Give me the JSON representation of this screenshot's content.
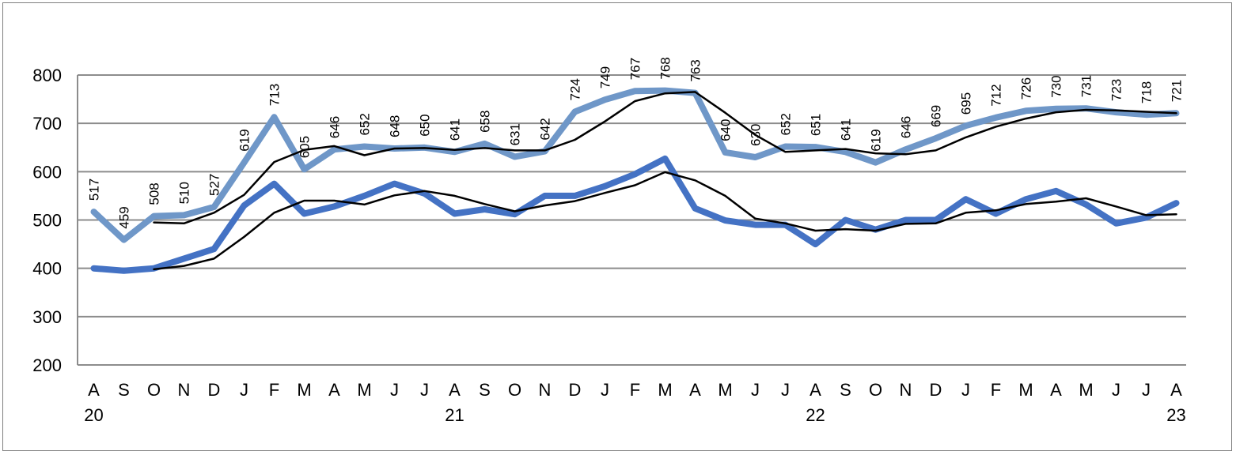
{
  "chart_data": {
    "type": "line",
    "title": "",
    "xlabel": "",
    "ylabel": "",
    "ylim": [
      200,
      800
    ],
    "yticks": [
      200,
      300,
      400,
      500,
      600,
      700,
      800
    ],
    "grid": true,
    "categories": [
      "A",
      "S",
      "O",
      "N",
      "D",
      "J",
      "F",
      "M",
      "A",
      "M",
      "J",
      "J",
      "A",
      "S",
      "O",
      "N",
      "D",
      "J",
      "F",
      "M",
      "A",
      "M",
      "J",
      "J",
      "A",
      "S",
      "O",
      "N",
      "D",
      "J",
      "F",
      "M",
      "A",
      "M",
      "J",
      "J",
      "A"
    ],
    "year_labels": [
      {
        "index": 0,
        "text": "20"
      },
      {
        "index": 12,
        "text": "21"
      },
      {
        "index": 24,
        "text": "22"
      },
      {
        "index": 36,
        "text": "23"
      }
    ],
    "series": [
      {
        "color": "#6f97c8",
        "width": 8,
        "show_labels": true,
        "values": [
          517,
          459,
          508,
          510,
          527,
          619,
          713,
          605,
          646,
          652,
          648,
          650,
          641,
          658,
          631,
          642,
          724,
          749,
          767,
          768,
          763,
          640,
          630,
          652,
          651,
          641,
          619,
          646,
          669,
          695,
          712,
          726,
          730,
          731,
          723,
          718,
          721
        ]
      },
      {
        "color": "#000000",
        "width": 2.5,
        "values": [
          null,
          null,
          495,
          493,
          515,
          552,
          620,
          645,
          653,
          634,
          648,
          649,
          645,
          649,
          644,
          644,
          666,
          704,
          746,
          762,
          765,
          722,
          676,
          641,
          644,
          647,
          638,
          636,
          644,
          671,
          693,
          710,
          723,
          728,
          727,
          724,
          721
        ]
      },
      {
        "color": "#4472c4",
        "width": 8,
        "values": [
          400,
          395,
          400,
          420,
          440,
          530,
          575,
          513,
          528,
          550,
          575,
          555,
          513,
          522,
          512,
          550,
          550,
          570,
          595,
          627,
          524,
          499,
          490,
          490,
          450,
          500,
          480,
          500,
          500,
          543,
          513,
          543,
          560,
          532,
          493,
          505,
          535
        ]
      },
      {
        "color": "#000000",
        "width": 2.5,
        "values": [
          null,
          null,
          398,
          405,
          420,
          465,
          515,
          540,
          540,
          532,
          551,
          560,
          550,
          533,
          518,
          530,
          539,
          556,
          572,
          599,
          582,
          550,
          503,
          493,
          478,
          481,
          478,
          492,
          493,
          515,
          520,
          533,
          538,
          545,
          528,
          510,
          512
        ]
      }
    ]
  }
}
